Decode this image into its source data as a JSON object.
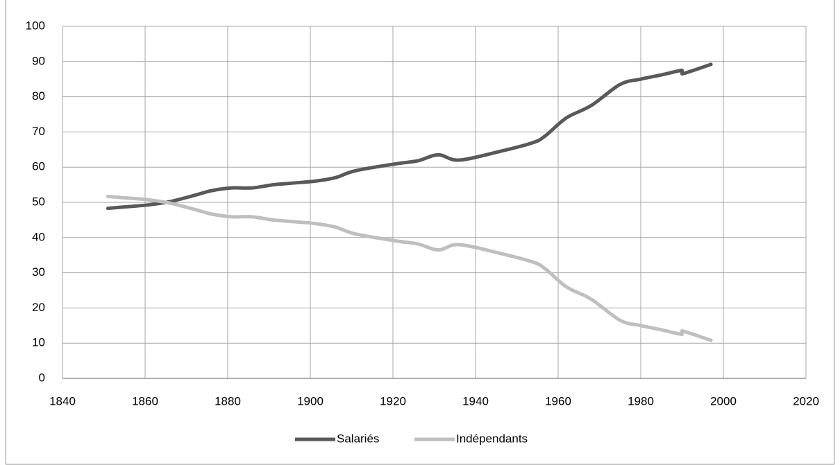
{
  "chart_data": {
    "type": "line",
    "x": [
      1851,
      1856,
      1861,
      1866,
      1872,
      1876,
      1881,
      1886,
      1891,
      1896,
      1901,
      1906,
      1911,
      1921,
      1926,
      1931,
      1936,
      1946,
      1954,
      1957,
      1962,
      1968,
      1975,
      1980,
      1985,
      1990,
      1990,
      1997
    ],
    "series": [
      {
        "name": "Salariés",
        "color": "#595959",
        "values": [
          48.3,
          48.8,
          49.3,
          50.2,
          52,
          53.3,
          54.1,
          54.1,
          55,
          55.5,
          56,
          57,
          59,
          61,
          61.8,
          63.5,
          62,
          64.5,
          67,
          69,
          74,
          77.5,
          83.5,
          85,
          86.2,
          87.5,
          86.5,
          89.2
        ]
      },
      {
        "name": "Indépendants",
        "color": "#bfbfbf",
        "values": [
          51.7,
          51.2,
          50.7,
          49.8,
          48,
          46.7,
          45.9,
          45.9,
          45,
          44.5,
          44,
          43,
          41,
          39,
          38.2,
          36.5,
          38,
          35.5,
          33,
          31,
          26,
          22.5,
          16.5,
          15,
          13.8,
          12.5,
          13.5,
          10.8
        ]
      }
    ],
    "xlim": [
      1840,
      2020
    ],
    "xticks": [
      1840,
      1860,
      1880,
      1900,
      1920,
      1940,
      1960,
      1980,
      2000,
      2020
    ],
    "ylim": [
      0,
      100
    ],
    "yticks": [
      0,
      10,
      20,
      30,
      40,
      50,
      60,
      70,
      80,
      90,
      100
    ],
    "grid": true,
    "legend": "bottom"
  }
}
